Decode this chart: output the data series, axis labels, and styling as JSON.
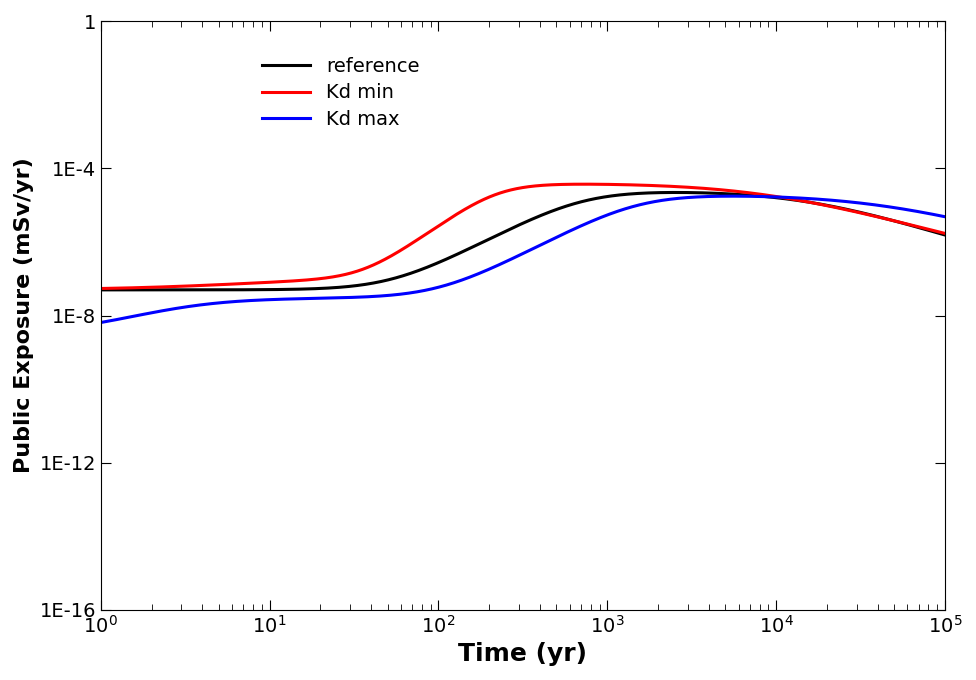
{
  "title": "",
  "xlabel": "Time (yr)",
  "ylabel": "Public Exposure (mSv/yr)",
  "xlim": [
    1,
    100000.0
  ],
  "ylim": [
    1e-16,
    1
  ],
  "legend_labels": [
    "reference",
    "Kd min",
    "Kd max"
  ],
  "legend_colors": [
    "black",
    "red",
    "blue"
  ],
  "line_width": 2.2,
  "xlabel_fontsize": 18,
  "ylabel_fontsize": 16,
  "tick_fontsize": 14,
  "legend_fontsize": 14,
  "background_color": "#ffffff"
}
